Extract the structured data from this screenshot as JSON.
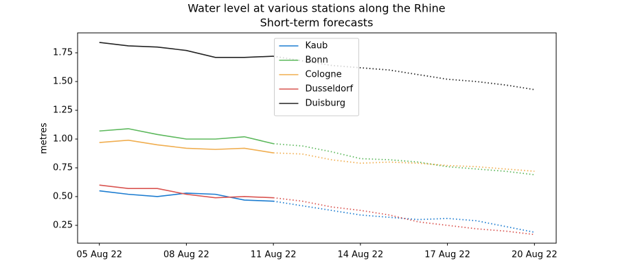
{
  "chart_data": {
    "type": "line",
    "title": "Water level at various stations along the Rhine",
    "subtitle": "Short-term forecasts",
    "ylabel": "metres",
    "x": [
      "2022-08-05",
      "2022-08-06",
      "2022-08-07",
      "2022-08-08",
      "2022-08-09",
      "2022-08-10",
      "2022-08-11",
      "2022-08-12",
      "2022-08-13",
      "2022-08-14",
      "2022-08-15",
      "2022-08-16",
      "2022-08-17",
      "2022-08-18",
      "2022-08-19",
      "2022-08-20"
    ],
    "xlim": [
      "2022-08-04T06:00:00Z",
      "2022-08-20T18:00:00Z"
    ],
    "xticks": [
      {
        "value": "2022-08-05",
        "label": "05 Aug 22"
      },
      {
        "value": "2022-08-08",
        "label": "08 Aug 22"
      },
      {
        "value": "2022-08-11",
        "label": "11 Aug 22"
      },
      {
        "value": "2022-08-14",
        "label": "14 Aug 22"
      },
      {
        "value": "2022-08-17",
        "label": "17 Aug 22"
      },
      {
        "value": "2022-08-20",
        "label": "20 Aug 22"
      }
    ],
    "ylim": [
      0.095,
      1.923
    ],
    "yticks": [
      0.25,
      {
        "value": 0.5,
        "label": "0.50"
      },
      0.75,
      {
        "value": 1,
        "label": "1.00"
      },
      1.25,
      {
        "value": 1.5,
        "label": "1.50"
      },
      1.75
    ],
    "legend": "upper center",
    "series": [
      {
        "name": "Kaub",
        "color": "#1a7bd0",
        "values": [
          0.55,
          0.52,
          0.5,
          0.53,
          0.52,
          0.47,
          0.46,
          null,
          null,
          null,
          null,
          null,
          null,
          null,
          null,
          null
        ],
        "forecast": [
          null,
          null,
          null,
          null,
          null,
          null,
          0.46,
          0.42,
          0.38,
          0.34,
          0.32,
          0.3,
          0.31,
          0.29,
          0.24,
          0.19
        ]
      },
      {
        "name": "Bonn",
        "color": "#5cb85c",
        "values": [
          1.07,
          1.09,
          1.04,
          1.0,
          1.0,
          1.02,
          0.96,
          null,
          null,
          null,
          null,
          null,
          null,
          null,
          null,
          null
        ],
        "forecast": [
          null,
          null,
          null,
          null,
          null,
          null,
          0.96,
          0.94,
          0.89,
          0.83,
          0.82,
          0.8,
          0.76,
          0.74,
          0.72,
          0.69
        ]
      },
      {
        "name": "Cologne",
        "color": "#f0ad4e",
        "values": [
          0.97,
          0.99,
          0.95,
          0.92,
          0.91,
          0.92,
          0.88,
          null,
          null,
          null,
          null,
          null,
          null,
          null,
          null,
          null
        ],
        "forecast": [
          null,
          null,
          null,
          null,
          null,
          null,
          0.88,
          0.87,
          0.82,
          0.79,
          0.8,
          0.79,
          0.77,
          0.76,
          0.74,
          0.72
        ]
      },
      {
        "name": "Dusseldorf",
        "color": "#d9534f",
        "values": [
          0.6,
          0.57,
          0.57,
          0.52,
          0.49,
          0.5,
          0.49,
          null,
          null,
          null,
          null,
          null,
          null,
          null,
          null,
          null
        ],
        "forecast": [
          null,
          null,
          null,
          null,
          null,
          null,
          0.49,
          0.46,
          0.41,
          0.38,
          0.34,
          0.28,
          0.25,
          0.22,
          0.2,
          0.17
        ]
      },
      {
        "name": "Duisburg",
        "color": "#222222",
        "values": [
          1.84,
          1.81,
          1.8,
          1.77,
          1.71,
          1.71,
          1.72,
          null,
          null,
          null,
          null,
          null,
          null,
          null,
          null,
          null
        ],
        "forecast": [
          null,
          null,
          null,
          null,
          null,
          null,
          1.72,
          1.68,
          1.64,
          1.62,
          1.6,
          1.56,
          1.52,
          1.5,
          1.47,
          1.43
        ]
      }
    ]
  }
}
